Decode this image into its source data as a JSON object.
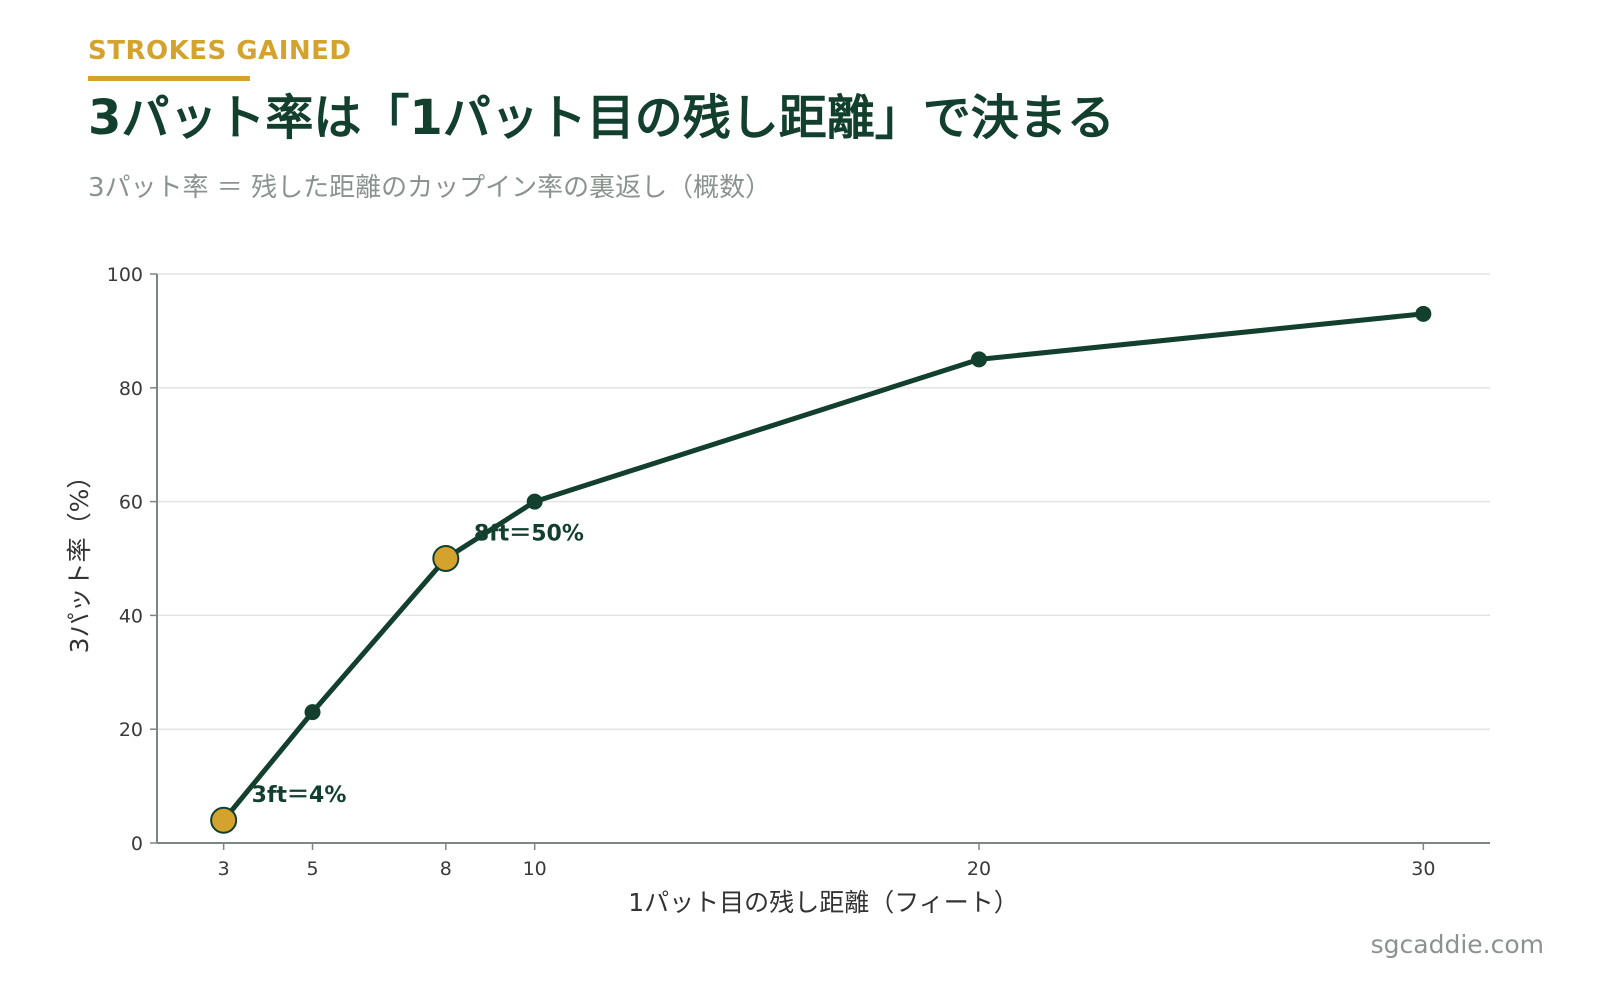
{
  "header": {
    "kicker": "STROKES GAINED",
    "title": "3パット率は「1パット目の残し距離」で決まる",
    "subtitle": "3パット率 ＝ 残した距離のカップイン率の裏返し（概数）"
  },
  "footer": {
    "credit": "sgcaddie.com"
  },
  "colors": {
    "line": "#123F2E",
    "highlight": "#D4A32E",
    "grid": "#E3E3E3",
    "axis": "#7D8683",
    "muted": "#8A938E"
  },
  "chart_data": {
    "type": "line",
    "xlabel": "1パット目の残し距離（フィート）",
    "ylabel": "3パット率（%）",
    "xlim": [
      1.5,
      31.5
    ],
    "ylim": [
      0,
      100
    ],
    "x_ticks": [
      3,
      5,
      8,
      10,
      20,
      30
    ],
    "y_ticks": [
      0,
      20,
      40,
      60,
      80,
      100
    ],
    "grid": true,
    "series": [
      {
        "x": [
          3,
          5,
          8,
          10,
          20,
          30
        ],
        "y": [
          4,
          23,
          50,
          60,
          85,
          93
        ]
      }
    ],
    "highlights": [
      {
        "x": 3,
        "y": 4,
        "label": "3ft＝4%"
      },
      {
        "x": 8,
        "y": 50,
        "label": "8ft＝50%"
      }
    ]
  }
}
